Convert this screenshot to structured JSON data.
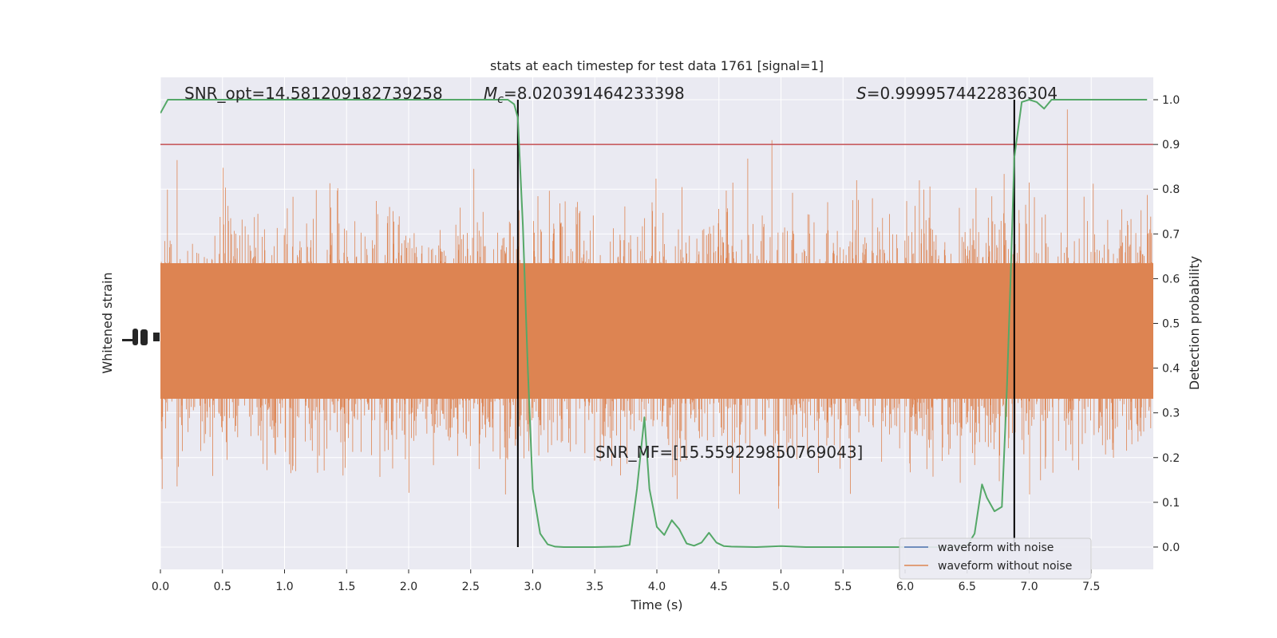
{
  "chart_data": {
    "type": "line",
    "title": "stats at each timestep for test data 1761 [signal=1]",
    "xlabel": "Time (s)",
    "ylabel_left": "Whitened strain",
    "ylabel_right": "Detection probability",
    "xlim": [
      0,
      8.0
    ],
    "ylim_right": [
      -0.05,
      1.05
    ],
    "x_ticks": [
      "0.0",
      "0.5",
      "1.0",
      "1.5",
      "2.0",
      "2.5",
      "3.0",
      "3.5",
      "4.0",
      "4.5",
      "5.0",
      "5.5",
      "6.0",
      "6.5",
      "7.0",
      "7.5"
    ],
    "y_ticks_right": [
      "0.0",
      "0.1",
      "0.2",
      "0.3",
      "0.4",
      "0.5",
      "0.6",
      "0.7",
      "0.8",
      "0.9",
      "1.0"
    ],
    "grid": true,
    "legend_placement": "lower-right",
    "annotations": {
      "snr_opt": "SNR_opt=14.581209182739258",
      "mc_symbol": "M",
      "mc_sub": "c",
      "mc_value": "=8.020391464233398",
      "s_symbol": "S",
      "s_value": "=0.9999574422836304",
      "snr_mf": "SNR_MF=[15.559229850769043]"
    },
    "threshold": 0.9,
    "vertical_lines_x": [
      2.88,
      6.88
    ],
    "series": [
      {
        "name": "waveform with noise",
        "color": "#4c72b0"
      },
      {
        "name": "waveform without noise",
        "color": "#dd8452"
      },
      {
        "color": "#55a868",
        "x": [
          0.0,
          0.06,
          0.12,
          0.5,
          1.0,
          1.5,
          2.0,
          2.5,
          2.7,
          2.75,
          2.8,
          2.85,
          2.88,
          2.92,
          2.96,
          3.0,
          3.06,
          3.12,
          3.18,
          3.25,
          3.35,
          3.5,
          3.7,
          3.78,
          3.84,
          3.9,
          3.94,
          4.0,
          4.06,
          4.12,
          4.18,
          4.24,
          4.3,
          4.36,
          4.42,
          4.48,
          4.54,
          4.6,
          4.8,
          5.0,
          5.2,
          5.6,
          6.0,
          6.3,
          6.5,
          6.56,
          6.62,
          6.66,
          6.72,
          6.78,
          6.82,
          6.85,
          6.88,
          6.94,
          7.0,
          7.06,
          7.12,
          7.18,
          7.26,
          7.4,
          7.6,
          7.8,
          7.95
        ],
        "values": [
          0.97,
          1.0,
          1.0,
          1.0,
          1.0,
          1.0,
          1.0,
          1.0,
          1.0,
          1.0,
          1.0,
          0.99,
          0.96,
          0.72,
          0.4,
          0.13,
          0.03,
          0.006,
          0.001,
          0.0,
          0.0,
          0.0,
          0.001,
          0.005,
          0.13,
          0.29,
          0.13,
          0.045,
          0.027,
          0.06,
          0.04,
          0.008,
          0.003,
          0.01,
          0.032,
          0.01,
          0.002,
          0.001,
          0.0,
          0.002,
          0.0,
          0.0,
          0.0,
          0.0,
          0.003,
          0.03,
          0.14,
          0.11,
          0.08,
          0.09,
          0.35,
          0.6,
          0.87,
          0.995,
          1.0,
          0.995,
          0.98,
          1.0,
          1.0,
          1.0,
          1.0,
          1.0,
          1.0
        ]
      }
    ]
  }
}
